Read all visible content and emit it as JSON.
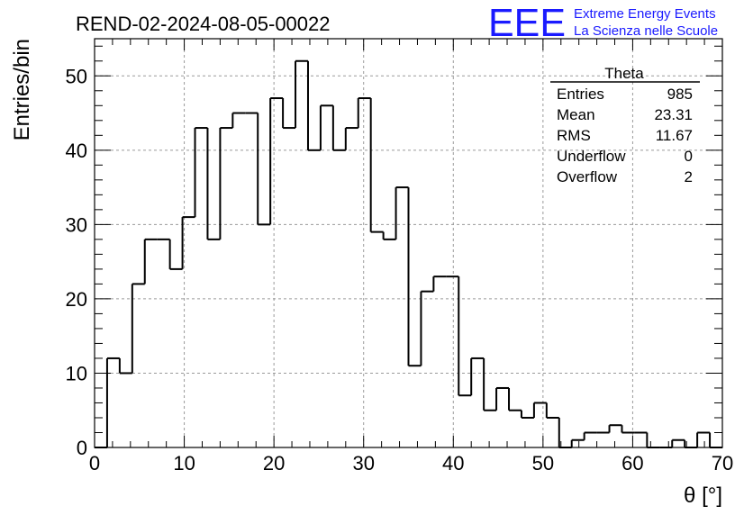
{
  "title": "REND-02-2024-08-05-00022",
  "logo": {
    "mark": "EEE",
    "line1": "Extreme Energy Events",
    "line2": "La Scienza nelle Scuole",
    "color": "#1a1aff"
  },
  "stats": {
    "name": "Theta",
    "rows": [
      {
        "label": "Entries",
        "value": "985"
      },
      {
        "label": "Mean",
        "value": "23.31"
      },
      {
        "label": "RMS",
        "value": "11.67"
      },
      {
        "label": "Underflow",
        "value": "0"
      },
      {
        "label": "Overflow",
        "value": "2"
      }
    ]
  },
  "chart_data": {
    "type": "bar",
    "style": "step-histogram",
    "title": "REND-02-2024-08-05-00022",
    "xlabel": "θ [°]",
    "ylabel": "Entries/bin",
    "xlim": [
      0,
      70
    ],
    "ylim": [
      0,
      55
    ],
    "xticks": [
      0,
      10,
      20,
      30,
      40,
      50,
      60,
      70
    ],
    "yticks": [
      0,
      10,
      20,
      30,
      40,
      50
    ],
    "grid": true,
    "legend": "top-right",
    "bin_width": 1.4,
    "bin_edges_start": 0,
    "values": [
      0,
      12,
      10,
      22,
      28,
      28,
      24,
      31,
      43,
      28,
      43,
      45,
      45,
      30,
      47,
      43,
      52,
      40,
      46,
      40,
      43,
      47,
      29,
      28,
      35,
      11,
      21,
      23,
      23,
      7,
      12,
      5,
      8,
      5,
      4,
      6,
      4,
      0,
      1,
      2,
      2,
      3,
      2,
      2,
      0,
      0,
      1,
      0,
      2,
      0
    ]
  }
}
